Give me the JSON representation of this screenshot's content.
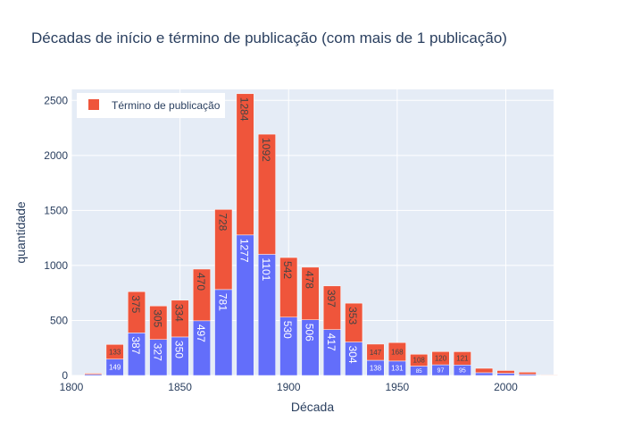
{
  "chart_data": {
    "type": "bar",
    "barmode": "stack",
    "title": "Décadas de início e término de publicação (com mais de 1 publicação)",
    "xlabel": "Década",
    "ylabel": "quantidade",
    "xlim": [
      1800,
      2022
    ],
    "ylim": [
      0,
      2600
    ],
    "xticks": [
      "1800",
      "1850",
      "1900",
      "1950",
      "2000"
    ],
    "yticks": [
      "0",
      "500",
      "1000",
      "1500",
      "2000",
      "2500"
    ],
    "grid": true,
    "legend_position": "top-left",
    "x": [
      1810,
      1820,
      1830,
      1840,
      1850,
      1860,
      1870,
      1880,
      1890,
      1900,
      1910,
      1920,
      1930,
      1940,
      1950,
      1960,
      1970,
      1980,
      1990,
      2000,
      2010,
      2020
    ],
    "series": [
      {
        "color": "#636efa",
        "values": [
          10,
          149,
          387,
          327,
          350,
          497,
          781,
          1277,
          1101,
          530,
          506,
          417,
          304,
          138,
          131,
          85,
          97,
          95,
          25,
          20,
          10,
          2
        ],
        "labels": [
          "",
          "149",
          "387",
          "327",
          "350",
          "497",
          "781",
          "1277",
          "1101",
          "530",
          "506",
          "417",
          "304",
          "138",
          "131",
          "85",
          "97",
          "95",
          "",
          "",
          "",
          ""
        ]
      },
      {
        "name": "Término de publicação",
        "color": "#ef553b",
        "values": [
          10,
          133,
          375,
          305,
          334,
          470,
          728,
          1284,
          1092,
          542,
          478,
          397,
          353,
          147,
          168,
          108,
          120,
          121,
          40,
          25,
          20,
          5
        ],
        "labels": [
          "",
          "133",
          "375",
          "305",
          "334",
          "470",
          "728",
          "1284",
          "1092",
          "542",
          "478",
          "397",
          "353",
          "147",
          "168",
          "108",
          "120",
          "121",
          "",
          "",
          "",
          ""
        ]
      }
    ]
  }
}
